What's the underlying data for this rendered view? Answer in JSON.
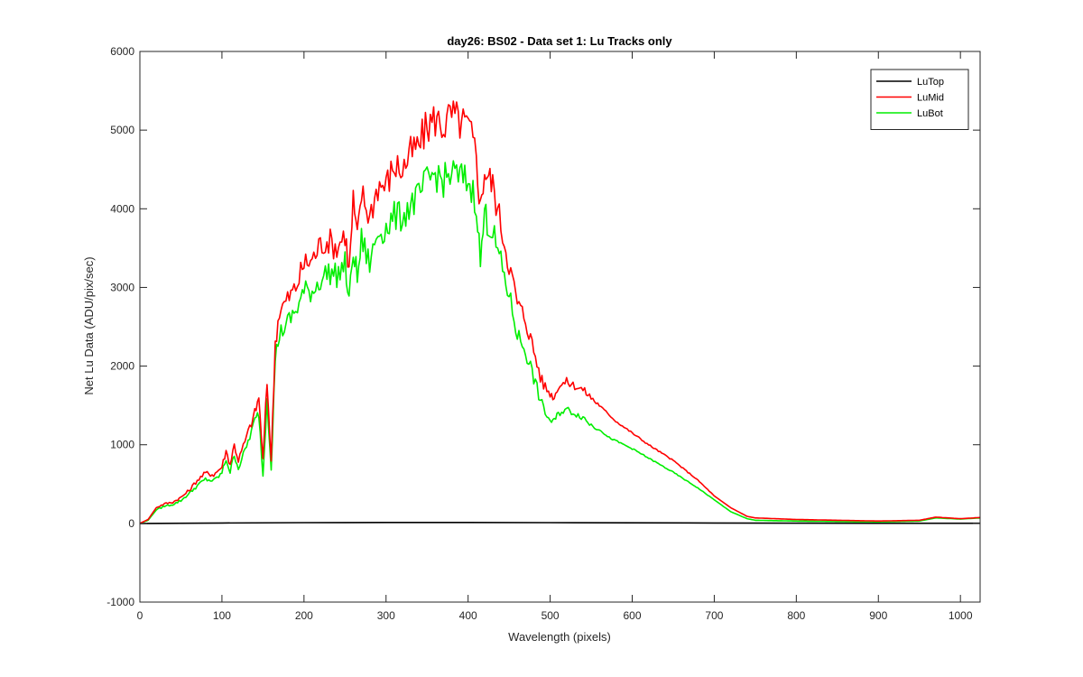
{
  "chart_data": {
    "type": "line",
    "title": "day26: BS02 - Data set 1: Lu Tracks only",
    "xlabel": "Wavelength (pixels)",
    "ylabel": "Net Lu Data (ADU/pix/sec)",
    "xlim": [
      0,
      1024
    ],
    "ylim": [
      -1000,
      6000
    ],
    "xticks": [
      0,
      100,
      200,
      300,
      400,
      500,
      600,
      700,
      800,
      900,
      1000
    ],
    "yticks": [
      -1000,
      0,
      1000,
      2000,
      3000,
      4000,
      5000,
      6000
    ],
    "grid": false,
    "legend_position": "top-right",
    "series": [
      {
        "name": "LuTop",
        "color": "#000000",
        "x": [
          0,
          100,
          200,
          300,
          400,
          500,
          600,
          700,
          800,
          900,
          1000,
          1024
        ],
        "values": [
          0,
          5,
          10,
          12,
          12,
          10,
          8,
          5,
          3,
          2,
          2,
          2
        ]
      },
      {
        "name": "LuMid",
        "color": "#ff0000",
        "x": [
          0,
          10,
          20,
          30,
          40,
          50,
          60,
          70,
          80,
          90,
          100,
          105,
          110,
          115,
          120,
          130,
          140,
          145,
          150,
          155,
          160,
          165,
          170,
          180,
          190,
          200,
          210,
          220,
          230,
          240,
          250,
          255,
          260,
          265,
          270,
          280,
          290,
          300,
          310,
          320,
          330,
          340,
          350,
          360,
          370,
          380,
          390,
          400,
          410,
          415,
          420,
          425,
          430,
          440,
          450,
          460,
          470,
          480,
          490,
          500,
          505,
          510,
          520,
          530,
          540,
          550,
          560,
          570,
          580,
          600,
          620,
          650,
          680,
          700,
          720,
          740,
          750,
          800,
          850,
          900,
          950,
          970,
          1000,
          1024
        ],
        "values": [
          0,
          50,
          200,
          250,
          270,
          330,
          420,
          550,
          640,
          620,
          720,
          920,
          750,
          1000,
          800,
          1100,
          1400,
          1600,
          800,
          1800,
          800,
          2300,
          2700,
          2850,
          3000,
          3300,
          3350,
          3550,
          3600,
          3500,
          3700,
          3200,
          4100,
          3600,
          4200,
          3900,
          4300,
          4300,
          4550,
          4500,
          4700,
          4800,
          5050,
          5150,
          5050,
          5200,
          5100,
          5050,
          4700,
          4000,
          4500,
          4400,
          4300,
          3800,
          3300,
          2800,
          2600,
          2200,
          1800,
          1650,
          1600,
          1750,
          1800,
          1750,
          1700,
          1600,
          1500,
          1400,
          1300,
          1150,
          1000,
          800,
          550,
          350,
          200,
          90,
          70,
          50,
          40,
          30,
          40,
          80,
          60,
          75
        ]
      },
      {
        "name": "LuBot",
        "color": "#00ee00",
        "x": [
          0,
          10,
          20,
          30,
          40,
          50,
          60,
          70,
          80,
          90,
          100,
          105,
          110,
          115,
          120,
          130,
          140,
          145,
          150,
          155,
          160,
          165,
          170,
          180,
          190,
          200,
          210,
          220,
          230,
          240,
          250,
          255,
          260,
          265,
          270,
          280,
          290,
          300,
          310,
          320,
          330,
          340,
          350,
          360,
          370,
          380,
          390,
          400,
          410,
          415,
          420,
          425,
          430,
          440,
          450,
          460,
          470,
          480,
          490,
          500,
          505,
          510,
          520,
          530,
          540,
          550,
          560,
          570,
          580,
          600,
          620,
          650,
          680,
          700,
          720,
          740,
          750,
          800,
          850,
          900,
          950,
          970,
          1000,
          1024
        ],
        "values": [
          0,
          40,
          170,
          220,
          240,
          290,
          380,
          480,
          560,
          540,
          640,
          820,
          650,
          880,
          700,
          980,
          1300,
          1400,
          600,
          1600,
          700,
          2100,
          2400,
          2550,
          2700,
          2950,
          2950,
          3100,
          3200,
          3150,
          3300,
          2800,
          3500,
          3100,
          3600,
          3300,
          3700,
          3750,
          3900,
          3900,
          4050,
          4150,
          4350,
          4450,
          4350,
          4450,
          4400,
          4350,
          4100,
          3300,
          3950,
          3800,
          3700,
          3300,
          2900,
          2400,
          2200,
          1850,
          1500,
          1300,
          1300,
          1400,
          1450,
          1400,
          1350,
          1250,
          1200,
          1100,
          1050,
          950,
          830,
          650,
          450,
          300,
          150,
          60,
          40,
          30,
          25,
          20,
          30,
          70,
          55,
          70
        ]
      }
    ]
  }
}
